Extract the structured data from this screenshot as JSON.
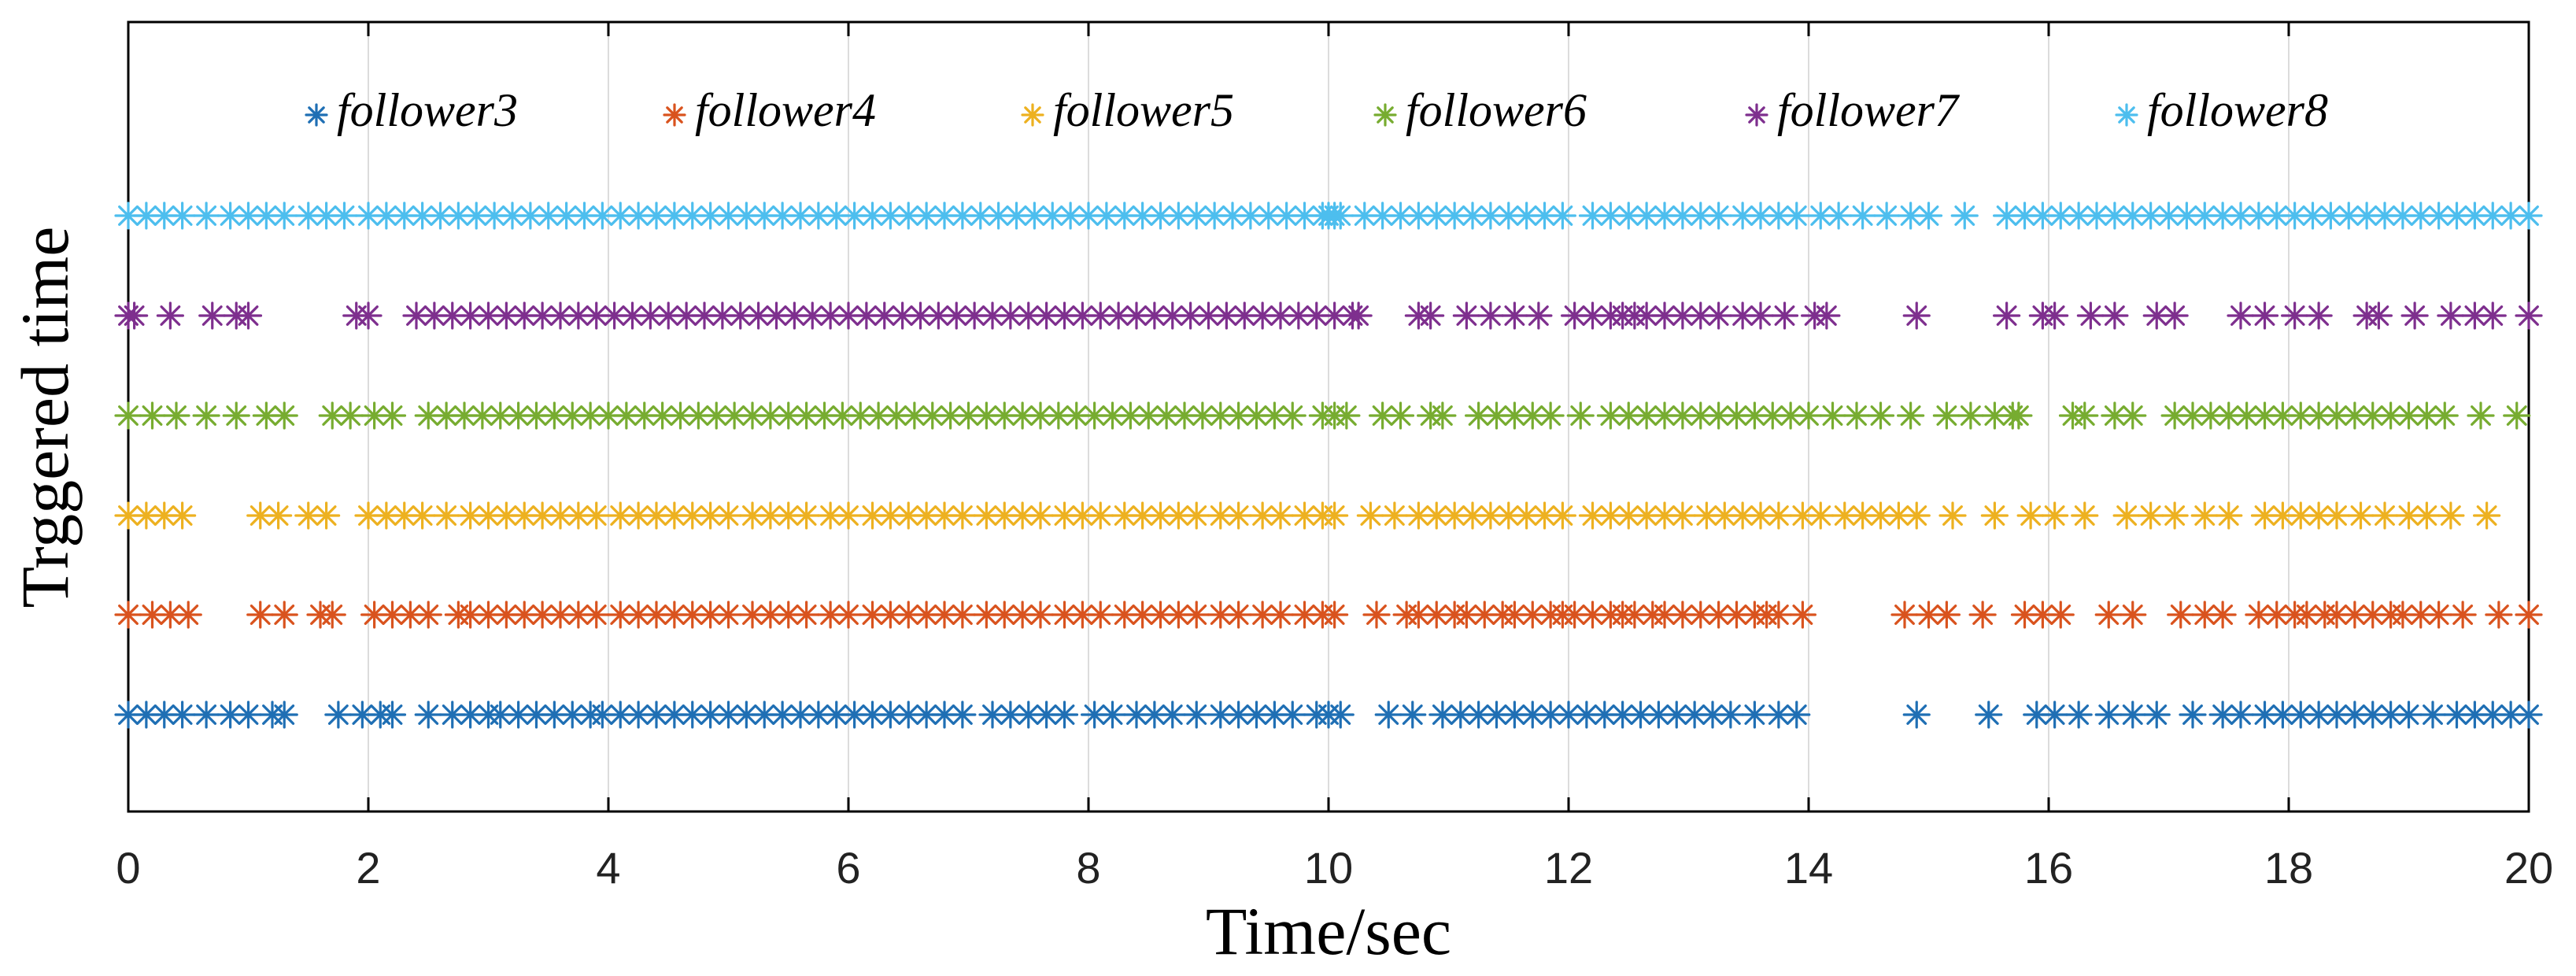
{
  "chart_data": {
    "type": "scatter",
    "title": "",
    "xlabel": "Time/sec",
    "ylabel": "Trggered time",
    "xlim": [
      0,
      20
    ],
    "xticks": [
      "0",
      "2",
      "4",
      "6",
      "8",
      "10",
      "12",
      "14",
      "16",
      "18",
      "20"
    ],
    "grid": "vertical",
    "legend_position": "top",
    "series": [
      {
        "name": "follower3",
        "color": "#1f6fb4",
        "marker": "asterisk",
        "x": [
          0.0,
          0.15,
          0.3,
          0.45,
          0.65,
          0.85,
          1.0,
          1.2,
          1.3,
          1.75,
          1.95,
          2.1,
          2.2,
          2.5,
          2.7,
          2.85,
          3.0,
          3.1,
          3.25,
          3.4,
          3.55,
          3.7,
          3.85,
          3.95,
          4.1,
          4.25,
          4.4,
          4.55,
          4.7,
          4.85,
          5.0,
          5.15,
          5.3,
          5.45,
          5.6,
          5.75,
          5.9,
          6.05,
          6.2,
          6.35,
          6.5,
          6.65,
          6.8,
          6.95,
          7.2,
          7.35,
          7.5,
          7.65,
          7.8,
          8.05,
          8.2,
          8.4,
          8.55,
          8.7,
          8.9,
          9.1,
          9.25,
          9.4,
          9.55,
          9.7,
          9.9,
          10.0,
          10.1,
          10.5,
          10.7,
          10.95,
          11.1,
          11.25,
          11.4,
          11.55,
          11.7,
          11.85,
          12.0,
          12.15,
          12.3,
          12.45,
          12.6,
          12.75,
          12.9,
          13.05,
          13.2,
          13.35,
          13.55,
          13.75,
          13.9,
          14.9,
          15.5,
          15.9,
          16.05,
          16.25,
          16.5,
          16.7,
          16.9,
          17.2,
          17.45,
          17.6,
          17.8,
          17.95,
          18.1,
          18.25,
          18.4,
          18.55,
          18.7,
          18.85,
          19.0,
          19.2,
          19.4,
          19.55,
          19.7,
          19.85,
          20.0
        ]
      },
      {
        "name": "follower4",
        "color": "#d9531e",
        "marker": "asterisk",
        "x": [
          0.0,
          0.2,
          0.35,
          0.5,
          1.1,
          1.3,
          1.6,
          1.7,
          2.05,
          2.2,
          2.35,
          2.5,
          2.75,
          2.85,
          3.0,
          3.15,
          3.3,
          3.45,
          3.6,
          3.75,
          3.9,
          4.1,
          4.25,
          4.4,
          4.55,
          4.7,
          4.85,
          5.0,
          5.2,
          5.35,
          5.5,
          5.65,
          5.85,
          6.0,
          6.2,
          6.35,
          6.5,
          6.65,
          6.8,
          6.95,
          7.15,
          7.3,
          7.45,
          7.6,
          7.8,
          7.95,
          8.1,
          8.3,
          8.45,
          8.6,
          8.75,
          8.9,
          9.1,
          9.25,
          9.45,
          9.6,
          9.8,
          9.95,
          10.05,
          10.4,
          10.65,
          10.75,
          10.9,
          11.05,
          11.15,
          11.3,
          11.45,
          11.55,
          11.7,
          11.85,
          11.95,
          12.05,
          12.2,
          12.35,
          12.45,
          12.55,
          12.7,
          12.8,
          12.95,
          13.1,
          13.25,
          13.4,
          13.55,
          13.65,
          13.75,
          13.95,
          14.8,
          15.0,
          15.15,
          15.45,
          15.8,
          15.95,
          16.1,
          16.5,
          16.7,
          17.1,
          17.3,
          17.45,
          17.75,
          17.9,
          18.05,
          18.15,
          18.3,
          18.4,
          18.55,
          18.7,
          18.85,
          18.95,
          19.1,
          19.25,
          19.45,
          19.75,
          20.0
        ]
      },
      {
        "name": "follower5",
        "color": "#edb120",
        "marker": "asterisk",
        "x": [
          0.0,
          0.15,
          0.3,
          0.45,
          1.1,
          1.25,
          1.5,
          1.65,
          2.0,
          2.15,
          2.3,
          2.45,
          2.65,
          2.85,
          3.0,
          3.15,
          3.3,
          3.45,
          3.6,
          3.75,
          3.9,
          4.1,
          4.25,
          4.4,
          4.55,
          4.7,
          4.85,
          5.0,
          5.2,
          5.35,
          5.5,
          5.65,
          5.85,
          6.0,
          6.2,
          6.35,
          6.5,
          6.65,
          6.8,
          6.95,
          7.15,
          7.3,
          7.45,
          7.6,
          7.8,
          7.95,
          8.1,
          8.3,
          8.45,
          8.6,
          8.75,
          8.9,
          9.1,
          9.25,
          9.45,
          9.6,
          9.8,
          9.95,
          10.05,
          10.35,
          10.55,
          10.75,
          10.9,
          11.05,
          11.2,
          11.35,
          11.5,
          11.65,
          11.8,
          11.95,
          12.2,
          12.35,
          12.5,
          12.65,
          12.8,
          12.95,
          13.15,
          13.3,
          13.45,
          13.6,
          13.75,
          13.95,
          14.1,
          14.3,
          14.45,
          14.6,
          14.75,
          14.9,
          15.2,
          15.55,
          15.85,
          16.05,
          16.3,
          16.65,
          16.85,
          17.05,
          17.3,
          17.5,
          17.8,
          17.95,
          18.1,
          18.25,
          18.4,
          18.6,
          18.8,
          19.0,
          19.15,
          19.35,
          19.65
        ]
      },
      {
        "name": "follower6",
        "color": "#77ac30",
        "marker": "asterisk",
        "x": [
          0.0,
          0.2,
          0.4,
          0.65,
          0.9,
          1.15,
          1.3,
          1.7,
          1.85,
          2.05,
          2.2,
          2.5,
          2.65,
          2.8,
          2.95,
          3.1,
          3.25,
          3.4,
          3.55,
          3.7,
          3.85,
          4.0,
          4.15,
          4.3,
          4.45,
          4.6,
          4.75,
          4.9,
          5.05,
          5.2,
          5.35,
          5.5,
          5.65,
          5.8,
          5.95,
          6.1,
          6.25,
          6.4,
          6.55,
          6.7,
          6.85,
          7.0,
          7.15,
          7.3,
          7.45,
          7.6,
          7.75,
          7.9,
          8.05,
          8.2,
          8.35,
          8.5,
          8.65,
          8.8,
          8.95,
          9.1,
          9.25,
          9.4,
          9.55,
          9.7,
          9.95,
          10.05,
          10.15,
          10.45,
          10.6,
          10.85,
          10.95,
          11.25,
          11.4,
          11.55,
          11.7,
          11.85,
          12.1,
          12.35,
          12.5,
          12.65,
          12.8,
          12.95,
          13.1,
          13.25,
          13.4,
          13.55,
          13.7,
          13.85,
          14.0,
          14.2,
          14.4,
          14.6,
          14.85,
          15.15,
          15.35,
          15.55,
          15.7,
          15.75,
          16.2,
          16.3,
          16.55,
          16.7,
          17.05,
          17.2,
          17.35,
          17.5,
          17.65,
          17.8,
          17.95,
          18.1,
          18.25,
          18.4,
          18.55,
          18.7,
          18.85,
          19.0,
          19.15,
          19.3,
          19.6,
          19.9
        ]
      },
      {
        "name": "follower7",
        "color": "#7e2f8e",
        "marker": "asterisk",
        "x": [
          0.0,
          0.05,
          0.35,
          0.7,
          0.9,
          1.0,
          1.9,
          2.0,
          2.4,
          2.55,
          2.7,
          2.85,
          3.0,
          3.15,
          3.3,
          3.45,
          3.6,
          3.75,
          3.9,
          4.05,
          4.2,
          4.35,
          4.5,
          4.65,
          4.8,
          4.95,
          5.1,
          5.25,
          5.4,
          5.55,
          5.7,
          5.85,
          6.0,
          6.15,
          6.3,
          6.45,
          6.6,
          6.75,
          6.9,
          7.05,
          7.2,
          7.35,
          7.5,
          7.65,
          7.8,
          7.95,
          8.1,
          8.25,
          8.4,
          8.55,
          8.7,
          8.85,
          9.0,
          9.15,
          9.3,
          9.45,
          9.6,
          9.75,
          9.9,
          10.05,
          10.2,
          10.25,
          10.75,
          10.85,
          11.15,
          11.35,
          11.55,
          11.75,
          12.05,
          12.2,
          12.35,
          12.45,
          12.55,
          12.65,
          12.8,
          12.95,
          13.1,
          13.25,
          13.45,
          13.6,
          13.8,
          14.05,
          14.15,
          14.9,
          15.65,
          15.95,
          16.05,
          16.35,
          16.55,
          16.9,
          17.05,
          17.6,
          17.8,
          18.05,
          18.25,
          18.65,
          18.75,
          19.05,
          19.35,
          19.55,
          19.7,
          20.0
        ]
      },
      {
        "name": "follower8",
        "color": "#4dbeee",
        "marker": "asterisk",
        "x": [
          0.0,
          0.15,
          0.3,
          0.45,
          0.65,
          0.85,
          1.0,
          1.15,
          1.3,
          1.5,
          1.65,
          1.8,
          2.0,
          2.15,
          2.3,
          2.45,
          2.6,
          2.75,
          2.9,
          3.05,
          3.2,
          3.35,
          3.5,
          3.65,
          3.8,
          3.95,
          4.1,
          4.25,
          4.4,
          4.55,
          4.7,
          4.85,
          5.0,
          5.15,
          5.3,
          5.45,
          5.6,
          5.75,
          5.9,
          6.05,
          6.2,
          6.35,
          6.5,
          6.65,
          6.8,
          6.95,
          7.1,
          7.25,
          7.4,
          7.55,
          7.7,
          7.85,
          8.0,
          8.15,
          8.3,
          8.45,
          8.6,
          8.75,
          8.9,
          9.05,
          9.2,
          9.35,
          9.5,
          9.65,
          9.8,
          9.95,
          10.0,
          10.05,
          10.1,
          10.3,
          10.45,
          10.6,
          10.75,
          10.9,
          11.05,
          11.2,
          11.35,
          11.5,
          11.65,
          11.8,
          11.95,
          12.2,
          12.35,
          12.5,
          12.65,
          12.8,
          12.95,
          13.1,
          13.25,
          13.45,
          13.6,
          13.75,
          13.9,
          14.1,
          14.25,
          14.45,
          14.65,
          14.85,
          15.0,
          15.3,
          15.65,
          15.8,
          15.95,
          16.1,
          16.25,
          16.4,
          16.55,
          16.7,
          16.85,
          17.0,
          17.15,
          17.3,
          17.45,
          17.6,
          17.75,
          17.9,
          18.05,
          18.2,
          18.35,
          18.5,
          18.65,
          18.8,
          18.95,
          19.1,
          19.25,
          19.4,
          19.55,
          19.7,
          19.85,
          20.0
        ]
      }
    ]
  }
}
